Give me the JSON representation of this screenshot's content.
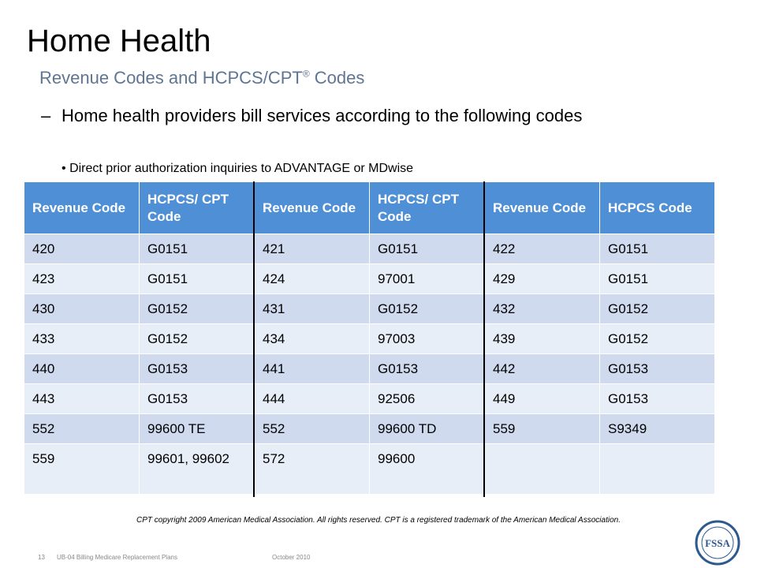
{
  "header": {
    "title": "Home Health",
    "subtitle": [
      "Revenue Codes and HCPCS/CPT",
      "®",
      " Codes"
    ]
  },
  "bullet": {
    "dash": "–",
    "text": "Home health providers bill services according to the following codes"
  },
  "sub_bullet": {
    "mark": "•",
    "text": "Direct prior authorization inquiries to ADVANTAGE or MDwise"
  },
  "table": {
    "headers": [
      "Revenue Code",
      "HCPCS/ CPT Code",
      "Revenue Code",
      "HCPCS/ CPT Code",
      "Revenue Code",
      "HCPCS Code"
    ],
    "rows": [
      [
        "420",
        "G0151",
        "421",
        "G0151",
        "422",
        "G0151"
      ],
      [
        "423",
        "G0151",
        "424",
        "97001",
        "429",
        "G0151"
      ],
      [
        "430",
        "G0152",
        "431",
        "G0152",
        "432",
        "G0152"
      ],
      [
        "433",
        "G0152",
        "434",
        "97003",
        "439",
        "G0152"
      ],
      [
        "440",
        "G0153",
        "441",
        "G0153",
        "442",
        "G0153"
      ],
      [
        "443",
        "G0153",
        "444",
        "92506",
        "449",
        "G0153"
      ],
      [
        "552",
        "99600 TE",
        "552",
        "99600 TD",
        "559",
        "S9349"
      ],
      [
        "559",
        "99601, 99602",
        "572",
        "99600",
        null,
        null
      ]
    ]
  },
  "footnote": "CPT copyright 2009 American Medical Association. All rights reserved. CPT is a registered trademark of the American Medical Association.",
  "footer": {
    "page": "13",
    "doc": "UB-04 Billing Medicare Replacement Plans",
    "date": "October  2010"
  },
  "logo": {
    "text": "FSSA"
  }
}
